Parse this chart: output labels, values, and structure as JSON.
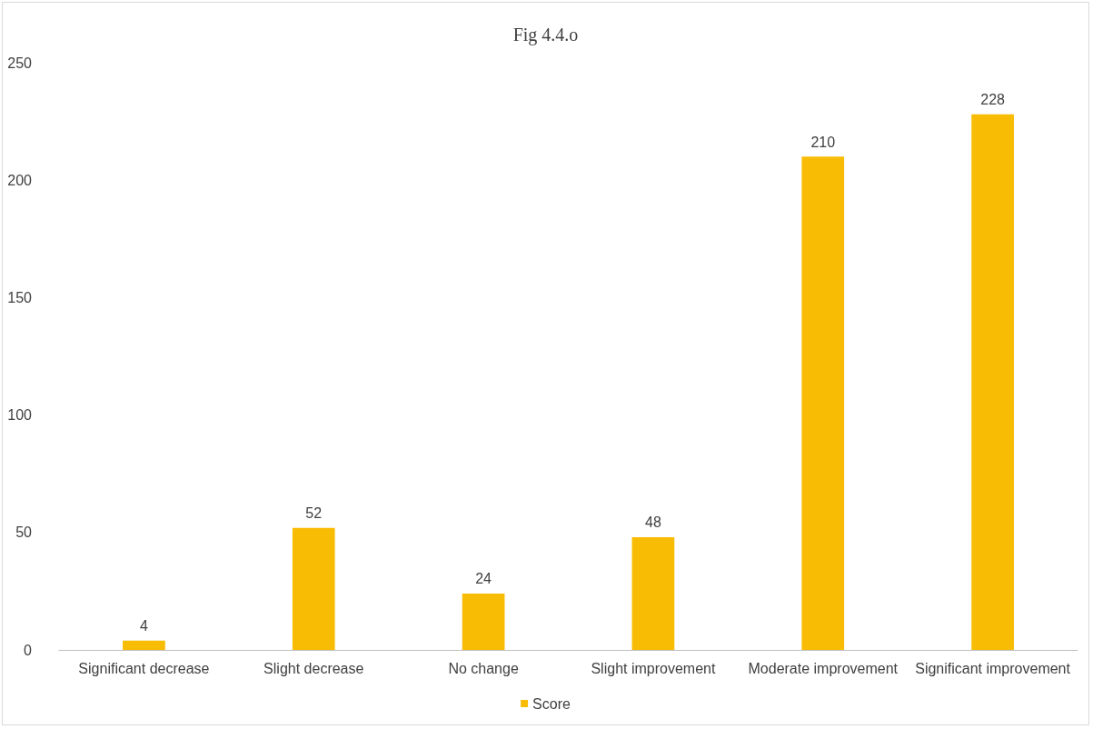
{
  "chart_data": {
    "type": "bar",
    "title": "Fig 4.4.o",
    "categories": [
      "Significant decrease",
      "Slight decrease",
      "No change",
      "Slight improvement",
      "Moderate improvement",
      "Significant improvement"
    ],
    "series": [
      {
        "name": "Score",
        "color": "#f9bc04",
        "values": [
          4,
          52,
          24,
          48,
          210,
          228
        ]
      }
    ],
    "ylim": [
      0,
      250
    ],
    "yticks": [
      0,
      50,
      100,
      150,
      200,
      250
    ],
    "grid": false,
    "legend": "bottom",
    "data_labels": true
  }
}
